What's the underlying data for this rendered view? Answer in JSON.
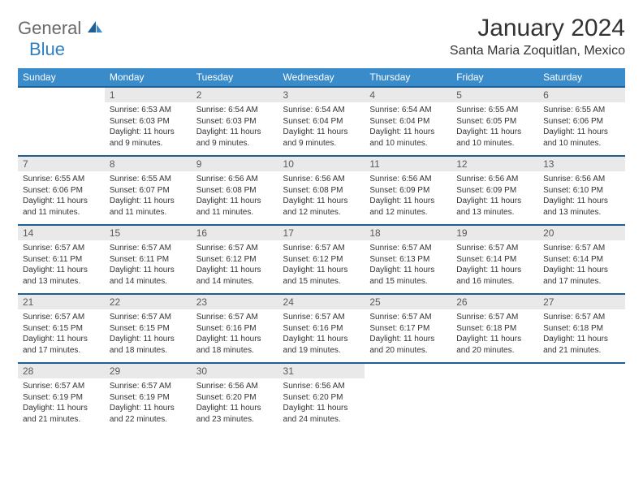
{
  "brand": {
    "part1": "General",
    "part2": "Blue"
  },
  "title": "January 2024",
  "location": "Santa Maria Zoquitlan, Mexico",
  "colors": {
    "header_bg": "#3a8bca",
    "header_border": "#1e5f95",
    "daynum_bg": "#e9e9e9",
    "logo_gray": "#6a6a6a",
    "logo_blue": "#2f7fc3"
  },
  "weekdays": [
    "Sunday",
    "Monday",
    "Tuesday",
    "Wednesday",
    "Thursday",
    "Friday",
    "Saturday"
  ],
  "weeks": [
    [
      null,
      {
        "n": "1",
        "sunrise": "Sunrise: 6:53 AM",
        "sunset": "Sunset: 6:03 PM",
        "daylight": "Daylight: 11 hours and 9 minutes."
      },
      {
        "n": "2",
        "sunrise": "Sunrise: 6:54 AM",
        "sunset": "Sunset: 6:03 PM",
        "daylight": "Daylight: 11 hours and 9 minutes."
      },
      {
        "n": "3",
        "sunrise": "Sunrise: 6:54 AM",
        "sunset": "Sunset: 6:04 PM",
        "daylight": "Daylight: 11 hours and 9 minutes."
      },
      {
        "n": "4",
        "sunrise": "Sunrise: 6:54 AM",
        "sunset": "Sunset: 6:04 PM",
        "daylight": "Daylight: 11 hours and 10 minutes."
      },
      {
        "n": "5",
        "sunrise": "Sunrise: 6:55 AM",
        "sunset": "Sunset: 6:05 PM",
        "daylight": "Daylight: 11 hours and 10 minutes."
      },
      {
        "n": "6",
        "sunrise": "Sunrise: 6:55 AM",
        "sunset": "Sunset: 6:06 PM",
        "daylight": "Daylight: 11 hours and 10 minutes."
      }
    ],
    [
      {
        "n": "7",
        "sunrise": "Sunrise: 6:55 AM",
        "sunset": "Sunset: 6:06 PM",
        "daylight": "Daylight: 11 hours and 11 minutes."
      },
      {
        "n": "8",
        "sunrise": "Sunrise: 6:55 AM",
        "sunset": "Sunset: 6:07 PM",
        "daylight": "Daylight: 11 hours and 11 minutes."
      },
      {
        "n": "9",
        "sunrise": "Sunrise: 6:56 AM",
        "sunset": "Sunset: 6:08 PM",
        "daylight": "Daylight: 11 hours and 11 minutes."
      },
      {
        "n": "10",
        "sunrise": "Sunrise: 6:56 AM",
        "sunset": "Sunset: 6:08 PM",
        "daylight": "Daylight: 11 hours and 12 minutes."
      },
      {
        "n": "11",
        "sunrise": "Sunrise: 6:56 AM",
        "sunset": "Sunset: 6:09 PM",
        "daylight": "Daylight: 11 hours and 12 minutes."
      },
      {
        "n": "12",
        "sunrise": "Sunrise: 6:56 AM",
        "sunset": "Sunset: 6:09 PM",
        "daylight": "Daylight: 11 hours and 13 minutes."
      },
      {
        "n": "13",
        "sunrise": "Sunrise: 6:56 AM",
        "sunset": "Sunset: 6:10 PM",
        "daylight": "Daylight: 11 hours and 13 minutes."
      }
    ],
    [
      {
        "n": "14",
        "sunrise": "Sunrise: 6:57 AM",
        "sunset": "Sunset: 6:11 PM",
        "daylight": "Daylight: 11 hours and 13 minutes."
      },
      {
        "n": "15",
        "sunrise": "Sunrise: 6:57 AM",
        "sunset": "Sunset: 6:11 PM",
        "daylight": "Daylight: 11 hours and 14 minutes."
      },
      {
        "n": "16",
        "sunrise": "Sunrise: 6:57 AM",
        "sunset": "Sunset: 6:12 PM",
        "daylight": "Daylight: 11 hours and 14 minutes."
      },
      {
        "n": "17",
        "sunrise": "Sunrise: 6:57 AM",
        "sunset": "Sunset: 6:12 PM",
        "daylight": "Daylight: 11 hours and 15 minutes."
      },
      {
        "n": "18",
        "sunrise": "Sunrise: 6:57 AM",
        "sunset": "Sunset: 6:13 PM",
        "daylight": "Daylight: 11 hours and 15 minutes."
      },
      {
        "n": "19",
        "sunrise": "Sunrise: 6:57 AM",
        "sunset": "Sunset: 6:14 PM",
        "daylight": "Daylight: 11 hours and 16 minutes."
      },
      {
        "n": "20",
        "sunrise": "Sunrise: 6:57 AM",
        "sunset": "Sunset: 6:14 PM",
        "daylight": "Daylight: 11 hours and 17 minutes."
      }
    ],
    [
      {
        "n": "21",
        "sunrise": "Sunrise: 6:57 AM",
        "sunset": "Sunset: 6:15 PM",
        "daylight": "Daylight: 11 hours and 17 minutes."
      },
      {
        "n": "22",
        "sunrise": "Sunrise: 6:57 AM",
        "sunset": "Sunset: 6:15 PM",
        "daylight": "Daylight: 11 hours and 18 minutes."
      },
      {
        "n": "23",
        "sunrise": "Sunrise: 6:57 AM",
        "sunset": "Sunset: 6:16 PM",
        "daylight": "Daylight: 11 hours and 18 minutes."
      },
      {
        "n": "24",
        "sunrise": "Sunrise: 6:57 AM",
        "sunset": "Sunset: 6:16 PM",
        "daylight": "Daylight: 11 hours and 19 minutes."
      },
      {
        "n": "25",
        "sunrise": "Sunrise: 6:57 AM",
        "sunset": "Sunset: 6:17 PM",
        "daylight": "Daylight: 11 hours and 20 minutes."
      },
      {
        "n": "26",
        "sunrise": "Sunrise: 6:57 AM",
        "sunset": "Sunset: 6:18 PM",
        "daylight": "Daylight: 11 hours and 20 minutes."
      },
      {
        "n": "27",
        "sunrise": "Sunrise: 6:57 AM",
        "sunset": "Sunset: 6:18 PM",
        "daylight": "Daylight: 11 hours and 21 minutes."
      }
    ],
    [
      {
        "n": "28",
        "sunrise": "Sunrise: 6:57 AM",
        "sunset": "Sunset: 6:19 PM",
        "daylight": "Daylight: 11 hours and 21 minutes."
      },
      {
        "n": "29",
        "sunrise": "Sunrise: 6:57 AM",
        "sunset": "Sunset: 6:19 PM",
        "daylight": "Daylight: 11 hours and 22 minutes."
      },
      {
        "n": "30",
        "sunrise": "Sunrise: 6:56 AM",
        "sunset": "Sunset: 6:20 PM",
        "daylight": "Daylight: 11 hours and 23 minutes."
      },
      {
        "n": "31",
        "sunrise": "Sunrise: 6:56 AM",
        "sunset": "Sunset: 6:20 PM",
        "daylight": "Daylight: 11 hours and 24 minutes."
      },
      null,
      null,
      null
    ]
  ]
}
